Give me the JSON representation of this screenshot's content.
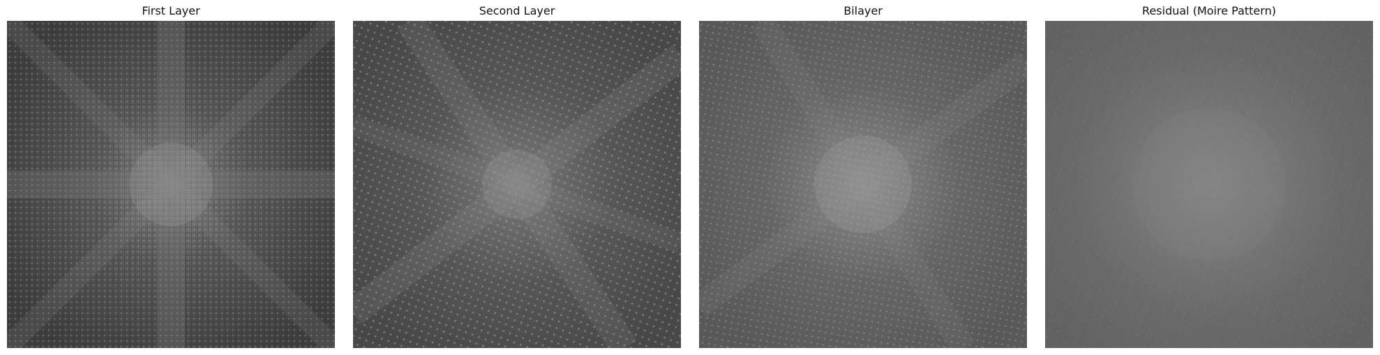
{
  "panels": [
    {
      "title": "First Layer",
      "image": "first-layer-fft",
      "base_color": "#4a4a4a"
    },
    {
      "title": "Second Layer",
      "image": "second-layer-fft",
      "base_color": "#555555"
    },
    {
      "title": "Bilayer",
      "image": "bilayer-fft",
      "base_color": "#5e5e5e"
    },
    {
      "title": "Residual (Moire Pattern)",
      "image": "residual-moire",
      "base_color": "#676767"
    }
  ]
}
